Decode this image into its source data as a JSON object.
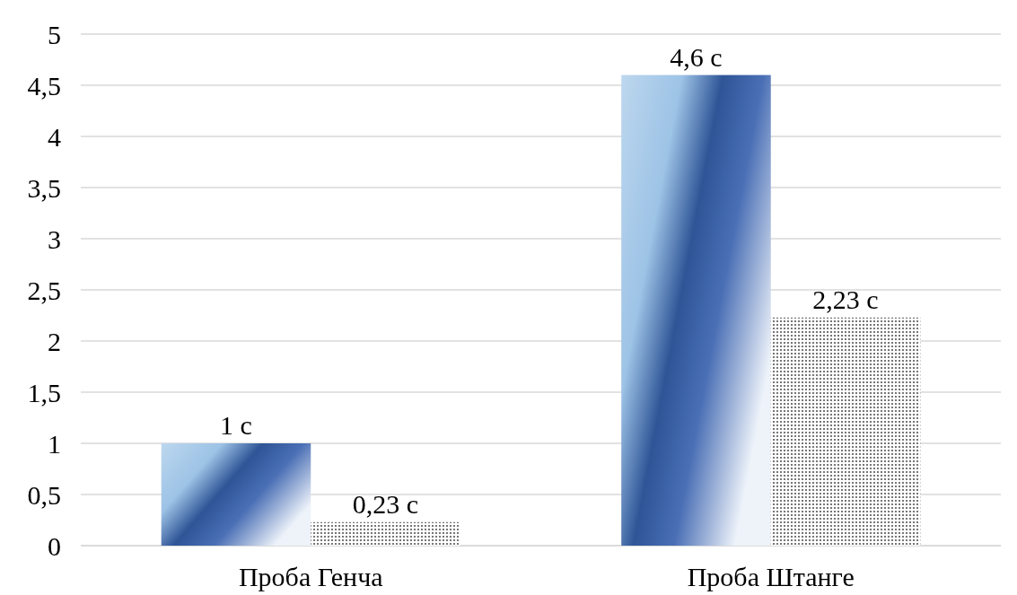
{
  "chart_data": {
    "type": "bar",
    "categories": [
      "Проба Генча",
      "Проба Штанге"
    ],
    "series": [
      {
        "color": "#2f5597",
        "values": [
          1,
          4.6
        ],
        "value_labels": [
          "1 с",
          "4,6 с"
        ]
      },
      {
        "color": "#555555",
        "values": [
          0.23,
          2.23
        ],
        "value_labels": [
          "0,23 с",
          "2,23 с"
        ]
      }
    ],
    "ylim": [
      0,
      5
    ],
    "yticks": [
      0,
      {
        "value": 0.5,
        "label": "0,5"
      },
      1,
      {
        "value": 1.5,
        "label": "1,5"
      },
      2,
      {
        "value": 2.5,
        "label": "2,5"
      },
      3,
      {
        "value": 3.5,
        "label": "3,5"
      },
      4,
      {
        "value": 4.5,
        "label": "4,5"
      },
      5
    ],
    "grid": "y"
  }
}
